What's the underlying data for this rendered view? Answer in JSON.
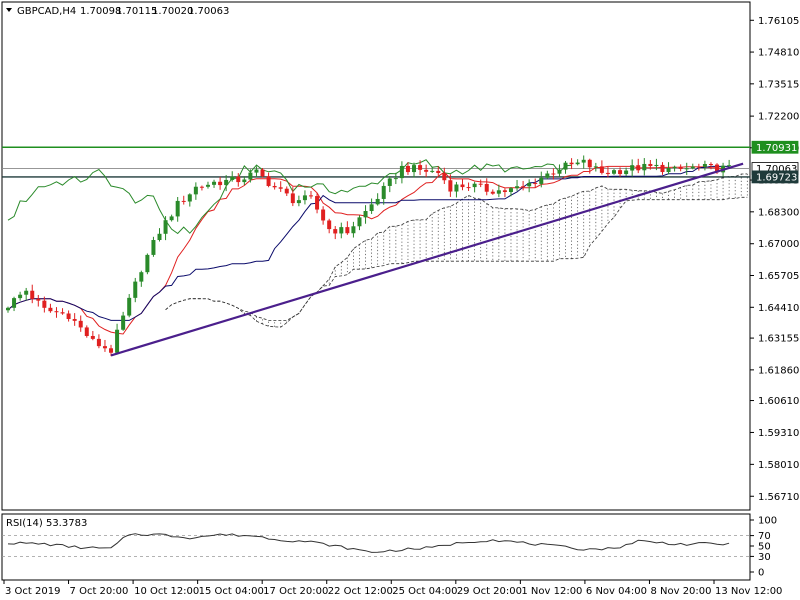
{
  "chart_data": {
    "type": "candlestick",
    "header": {
      "symbol": "GBPCAD,H4",
      "open": "1.70098",
      "high": "1.70115",
      "low": "1.70020",
      "close": "1.70063"
    },
    "y_axis": {
      "range": [
        1.5615,
        1.7685
      ],
      "ticks": [
        "1.76105",
        "1.74810",
        "1.73515",
        "1.72200",
        "1.70910",
        "1.69595",
        "1.68300",
        "1.67000",
        "1.65705",
        "1.64410",
        "1.63155",
        "1.61860",
        "1.60610",
        "1.59310",
        "1.58010",
        "1.56710"
      ]
    },
    "x_axis": {
      "labels": [
        "3 Oct 2019",
        "7 Oct 20:00",
        "10 Oct 12:00",
        "15 Oct 04:00",
        "17 Oct 20:00",
        "22 Oct 12:00",
        "25 Oct 04:00",
        "29 Oct 20:00",
        "1 Nov 12:00",
        "6 Nov 04:00",
        "8 Nov 20:00",
        "13 Nov 12:00"
      ]
    },
    "levels": [
      {
        "value": 1.70931,
        "label": "1.70931",
        "color": "#1f8f1f",
        "style": "solid"
      },
      {
        "value": 1.70063,
        "label": "1.70063",
        "color": "#888888",
        "style": "solid"
      },
      {
        "value": 1.69723,
        "label": "1.69723",
        "color": "#1f3a3a",
        "style": "solid"
      }
    ],
    "trendline": {
      "from": {
        "i": 17,
        "price": 1.6245
      },
      "to": {
        "i": 118,
        "price": 1.701
      },
      "color": "#4b1f8c"
    },
    "candles": {
      "count": 120,
      "anchors": [
        [
          0,
          1.645
        ],
        [
          3,
          1.651
        ],
        [
          6,
          1.643
        ],
        [
          10,
          1.641
        ],
        [
          14,
          1.63
        ],
        [
          17,
          1.6265
        ],
        [
          19,
          1.64
        ],
        [
          22,
          1.66
        ],
        [
          25,
          1.675
        ],
        [
          28,
          1.686
        ],
        [
          31,
          1.693
        ],
        [
          34,
          1.695
        ],
        [
          38,
          1.696
        ],
        [
          41,
          1.699
        ],
        [
          44,
          1.693
        ],
        [
          47,
          1.688
        ],
        [
          50,
          1.688
        ],
        [
          53,
          1.676
        ],
        [
          56,
          1.675
        ],
        [
          59,
          1.683
        ],
        [
          62,
          1.692
        ],
        [
          65,
          1.701
        ],
        [
          68,
          1.7
        ],
        [
          71,
          1.699
        ],
        [
          73,
          1.693
        ],
        [
          76,
          1.694
        ],
        [
          79,
          1.692
        ],
        [
          82,
          1.6915
        ],
        [
          85,
          1.693
        ],
        [
          88,
          1.697
        ],
        [
          91,
          1.701
        ],
        [
          95,
          1.703
        ],
        [
          98,
          1.699
        ],
        [
          101,
          1.7
        ],
        [
          104,
          1.701
        ],
        [
          107,
          1.7012
        ],
        [
          110,
          1.6998
        ],
        [
          113,
          1.701
        ],
        [
          116,
          1.7008
        ],
        [
          119,
          1.7006
        ]
      ]
    },
    "rsi": {
      "label": "RSI(14) 53.3783",
      "levels": [
        30,
        70
      ],
      "ticks": [
        "100",
        "70",
        "50",
        "30",
        "0"
      ],
      "anchors": [
        [
          0,
          56
        ],
        [
          6,
          54
        ],
        [
          12,
          47
        ],
        [
          17,
          45
        ],
        [
          20,
          73
        ],
        [
          25,
          72
        ],
        [
          30,
          66
        ],
        [
          35,
          72
        ],
        [
          40,
          70
        ],
        [
          45,
          62
        ],
        [
          50,
          58
        ],
        [
          55,
          48
        ],
        [
          60,
          38
        ],
        [
          65,
          43
        ],
        [
          70,
          47
        ],
        [
          75,
          57
        ],
        [
          80,
          62
        ],
        [
          85,
          56
        ],
        [
          90,
          50
        ],
        [
          95,
          44
        ],
        [
          100,
          45
        ],
        [
          104,
          60
        ],
        [
          108,
          56
        ],
        [
          112,
          53
        ],
        [
          116,
          55
        ],
        [
          119,
          53
        ]
      ]
    },
    "colors": {
      "bull": "#2a8a2a",
      "bear": "#e02020",
      "tenkan": "#e02020",
      "kijun": "#0a0a6a",
      "chikou": "#2a8a2a",
      "cloud": "#555555",
      "rsi": "#333333",
      "grid": "#d8d8d8"
    }
  }
}
